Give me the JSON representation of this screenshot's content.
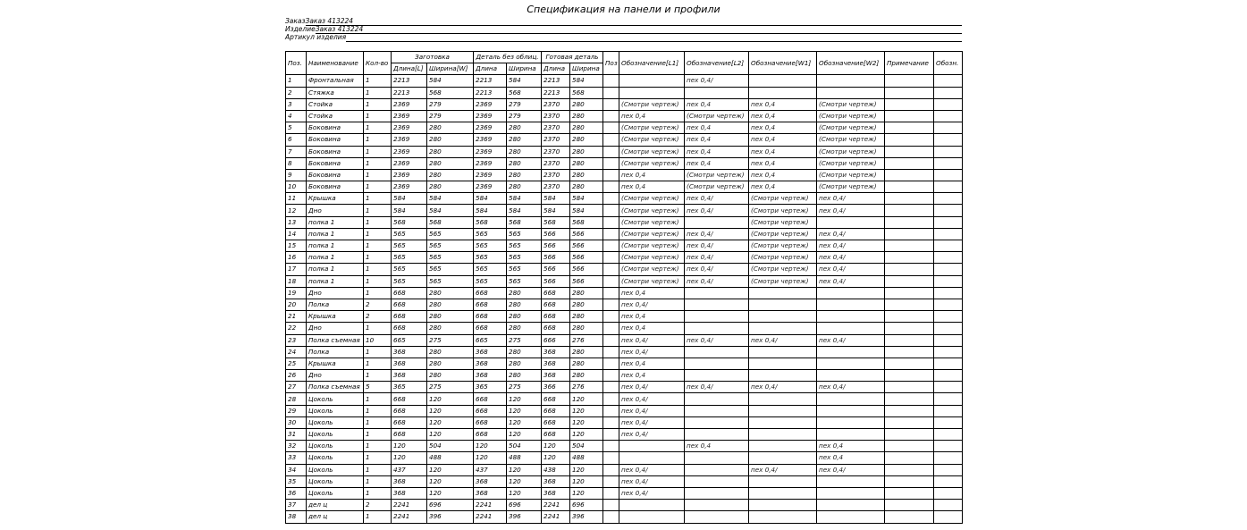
{
  "title": "Спецификация на панели и профили",
  "meta": [
    {
      "label": "Заказ ",
      "value": "Заказ 413224"
    },
    {
      "label": "Изделие ",
      "value": "Заказ 413224"
    },
    {
      "label": "Артикул изделия",
      "value": ""
    }
  ],
  "headers": {
    "pos": "Поз.",
    "name": "Наименование",
    "qty": "Кол-во",
    "blank": "Заготовка",
    "detail": "Деталь без облиц.",
    "finished": "Готовая деталь",
    "blank_len": "Длина[L]",
    "blank_wid": "Ширина[W]",
    "len": "Длина",
    "wid": "Ширина",
    "poz": "Поз",
    "l1": "Обозначение[L1]",
    "l2": "Обозначение[L2]",
    "w1": "Обозначение[W1]",
    "w2": "Обозначение[W2]",
    "note": "Примечание",
    "oboz": "Обозн."
  },
  "rows": [
    [
      "1",
      "Фронтальная",
      "1",
      "2213",
      "584",
      "2213",
      "584",
      "2213",
      "584",
      "",
      "",
      "пех 0,4/",
      "",
      "",
      "",
      ""
    ],
    [
      "2",
      "Стяжка",
      "1",
      "2213",
      "568",
      "2213",
      "568",
      "2213",
      "568",
      "",
      "",
      "",
      "",
      "",
      "",
      ""
    ],
    [
      "3",
      "Стойка",
      "1",
      "2369",
      "279",
      "2369",
      "279",
      "2370",
      "280",
      "",
      "(Смотри чертеж)",
      "пех 0,4",
      "пех 0,4",
      "(Смотри чертеж)",
      "",
      ""
    ],
    [
      "4",
      "Стойка",
      "1",
      "2369",
      "279",
      "2369",
      "279",
      "2370",
      "280",
      "",
      "пех 0,4",
      "(Смотри чертеж)",
      "пех 0,4",
      "(Смотри чертеж)",
      "",
      ""
    ],
    [
      "5",
      "Боковина",
      "1",
      "2369",
      "280",
      "2369",
      "280",
      "2370",
      "280",
      "",
      "(Смотри чертеж)",
      "пех 0,4",
      "пех 0,4",
      "(Смотри чертеж)",
      "",
      ""
    ],
    [
      "6",
      "Боковина",
      "1",
      "2369",
      "280",
      "2369",
      "280",
      "2370",
      "280",
      "",
      "(Смотри чертеж)",
      "пех 0,4",
      "пех 0,4",
      "(Смотри чертеж)",
      "",
      ""
    ],
    [
      "7",
      "Боковина",
      "1",
      "2369",
      "280",
      "2369",
      "280",
      "2370",
      "280",
      "",
      "(Смотри чертеж)",
      "пех 0,4",
      "пех 0,4",
      "(Смотри чертеж)",
      "",
      ""
    ],
    [
      "8",
      "Боковина",
      "1",
      "2369",
      "280",
      "2369",
      "280",
      "2370",
      "280",
      "",
      "(Смотри чертеж)",
      "пех 0,4",
      "пех 0,4",
      "(Смотри чертеж)",
      "",
      ""
    ],
    [
      "9",
      "Боковина",
      "1",
      "2369",
      "280",
      "2369",
      "280",
      "2370",
      "280",
      "",
      "пех 0,4",
      "(Смотри чертеж)",
      "пех 0,4",
      "(Смотри чертеж)",
      "",
      ""
    ],
    [
      "10",
      "Боковина",
      "1",
      "2369",
      "280",
      "2369",
      "280",
      "2370",
      "280",
      "",
      "пех 0,4",
      "(Смотри чертеж)",
      "пех 0,4",
      "(Смотри чертеж)",
      "",
      ""
    ],
    [
      "11",
      "Крышка",
      "1",
      "584",
      "584",
      "584",
      "584",
      "584",
      "584",
      "",
      "(Смотри чертеж)",
      "пех 0,4/",
      "(Смотри чертеж)",
      "пех 0,4/",
      "",
      ""
    ],
    [
      "12",
      "Дно",
      "1",
      "584",
      "584",
      "584",
      "584",
      "584",
      "584",
      "",
      "(Смотри чертеж)",
      "пех 0,4/",
      "(Смотри чертеж)",
      "пех 0,4/",
      "",
      ""
    ],
    [
      "13",
      "полка 1",
      "1",
      "568",
      "568",
      "568",
      "568",
      "568",
      "568",
      "",
      "(Смотри чертеж)",
      "",
      "(Смотри чертеж)",
      "",
      "",
      ""
    ],
    [
      "14",
      "полка 1",
      "1",
      "565",
      "565",
      "565",
      "565",
      "566",
      "566",
      "",
      "(Смотри чертеж)",
      "пех 0,4/",
      "(Смотри чертеж)",
      "пех 0,4/",
      "",
      ""
    ],
    [
      "15",
      "полка 1",
      "1",
      "565",
      "565",
      "565",
      "565",
      "566",
      "566",
      "",
      "(Смотри чертеж)",
      "пех 0,4/",
      "(Смотри чертеж)",
      "пех 0,4/",
      "",
      ""
    ],
    [
      "16",
      "полка 1",
      "1",
      "565",
      "565",
      "565",
      "565",
      "566",
      "566",
      "",
      "(Смотри чертеж)",
      "пех 0,4/",
      "(Смотри чертеж)",
      "пех 0,4/",
      "",
      ""
    ],
    [
      "17",
      "полка 1",
      "1",
      "565",
      "565",
      "565",
      "565",
      "566",
      "566",
      "",
      "(Смотри чертеж)",
      "пех 0,4/",
      "(Смотри чертеж)",
      "пех 0,4/",
      "",
      ""
    ],
    [
      "18",
      "полка 1",
      "1",
      "565",
      "565",
      "565",
      "565",
      "566",
      "566",
      "",
      "(Смотри чертеж)",
      "пех 0,4/",
      "(Смотри чертеж)",
      "пех 0,4/",
      "",
      ""
    ],
    [
      "19",
      "Дно",
      "1",
      "668",
      "280",
      "668",
      "280",
      "668",
      "280",
      "",
      "пех 0,4",
      "",
      "",
      "",
      "",
      ""
    ],
    [
      "20",
      "Полка",
      "2",
      "668",
      "280",
      "668",
      "280",
      "668",
      "280",
      "",
      "пех 0,4/",
      "",
      "",
      "",
      "",
      ""
    ],
    [
      "21",
      "Крышка",
      "2",
      "668",
      "280",
      "668",
      "280",
      "668",
      "280",
      "",
      "пех 0,4",
      "",
      "",
      "",
      "",
      ""
    ],
    [
      "22",
      "Дно",
      "1",
      "668",
      "280",
      "668",
      "280",
      "668",
      "280",
      "",
      "пех 0,4",
      "",
      "",
      "",
      "",
      ""
    ],
    [
      "23",
      "Полка съемная",
      "10",
      "665",
      "275",
      "665",
      "275",
      "666",
      "276",
      "",
      "пех 0,4/",
      "пех 0,4/",
      "пех 0,4/",
      "пех 0,4/",
      "",
      ""
    ],
    [
      "24",
      "Полка",
      "1",
      "368",
      "280",
      "368",
      "280",
      "368",
      "280",
      "",
      "пех 0,4/",
      "",
      "",
      "",
      "",
      ""
    ],
    [
      "25",
      "Крышка",
      "1",
      "368",
      "280",
      "368",
      "280",
      "368",
      "280",
      "",
      "пех 0,4",
      "",
      "",
      "",
      "",
      ""
    ],
    [
      "26",
      "Дно",
      "1",
      "368",
      "280",
      "368",
      "280",
      "368",
      "280",
      "",
      "пех 0,4",
      "",
      "",
      "",
      "",
      ""
    ],
    [
      "27",
      "Полка съемная",
      "5",
      "365",
      "275",
      "365",
      "275",
      "366",
      "276",
      "",
      "пех 0,4/",
      "пех 0,4/",
      "пех 0,4/",
      "пех 0,4/",
      "",
      ""
    ],
    [
      "28",
      "Цоколь",
      "1",
      "668",
      "120",
      "668",
      "120",
      "668",
      "120",
      "",
      "пех 0,4/",
      "",
      "",
      "",
      "",
      ""
    ],
    [
      "29",
      "Цоколь",
      "1",
      "668",
      "120",
      "668",
      "120",
      "668",
      "120",
      "",
      "пех 0,4/",
      "",
      "",
      "",
      "",
      ""
    ],
    [
      "30",
      "Цоколь",
      "1",
      "668",
      "120",
      "668",
      "120",
      "668",
      "120",
      "",
      "пех 0,4/",
      "",
      "",
      "",
      "",
      ""
    ],
    [
      "31",
      "Цоколь",
      "1",
      "668",
      "120",
      "668",
      "120",
      "668",
      "120",
      "",
      "пех 0,4/",
      "",
      "",
      "",
      "",
      ""
    ],
    [
      "32",
      "Цоколь",
      "1",
      "120",
      "504",
      "120",
      "504",
      "120",
      "504",
      "",
      "",
      "пех 0,4",
      "",
      "пех 0,4",
      "",
      ""
    ],
    [
      "33",
      "Цоколь",
      "1",
      "120",
      "488",
      "120",
      "488",
      "120",
      "488",
      "",
      "",
      "",
      "",
      "пех 0,4",
      "",
      ""
    ],
    [
      "34",
      "Цоколь",
      "1",
      "437",
      "120",
      "437",
      "120",
      "438",
      "120",
      "",
      "пех 0,4/",
      "",
      "пех 0,4/",
      "пех 0,4/",
      "",
      ""
    ],
    [
      "35",
      "Цоколь",
      "1",
      "368",
      "120",
      "368",
      "120",
      "368",
      "120",
      "",
      "пех 0,4/",
      "",
      "",
      "",
      "",
      ""
    ],
    [
      "36",
      "Цоколь",
      "1",
      "368",
      "120",
      "368",
      "120",
      "368",
      "120",
      "",
      "пех 0,4/",
      "",
      "",
      "",
      "",
      ""
    ],
    [
      "37",
      "дел ц",
      "2",
      "2241",
      "696",
      "2241",
      "696",
      "2241",
      "696",
      "",
      "",
      "",
      "",
      "",
      "",
      ""
    ],
    [
      "38",
      "дел ц",
      "1",
      "2241",
      "396",
      "2241",
      "396",
      "2241",
      "396",
      "",
      "",
      "",
      "",
      "",
      "",
      ""
    ]
  ]
}
